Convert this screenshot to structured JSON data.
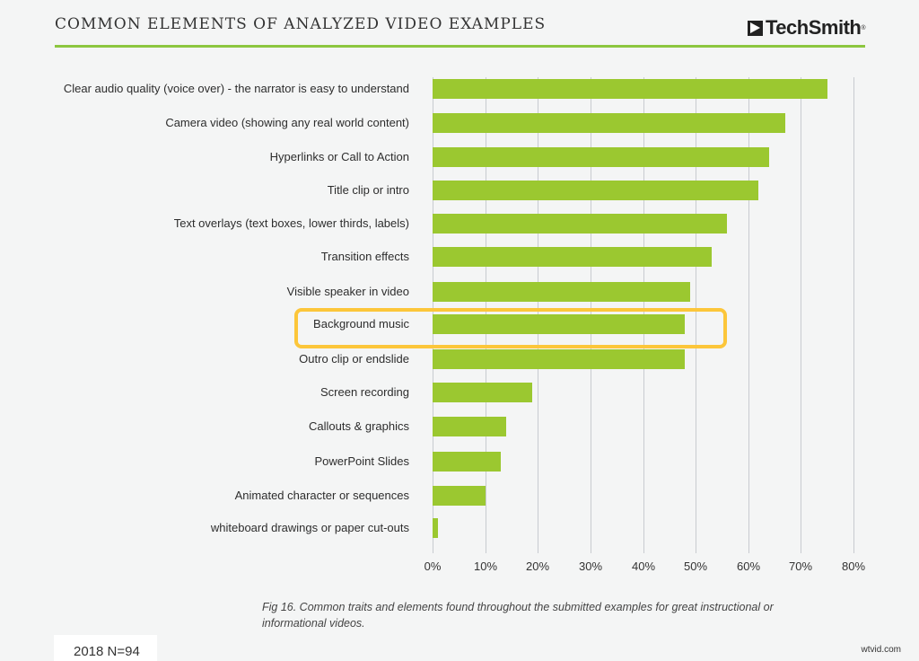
{
  "header": {
    "title": "COMMON ELEMENTS OF ANALYZED VIDEO EXAMPLES",
    "logo_text": "TechSmith",
    "logo_mark": "®"
  },
  "colors": {
    "bar": "#9bc830",
    "highlight": "#fcc63a",
    "rule": "#8cc63f"
  },
  "chart_data": {
    "type": "bar",
    "orientation": "horizontal",
    "title": "COMMON ELEMENTS OF ANALYZED VIDEO EXAMPLES",
    "xlabel": "",
    "ylabel": "",
    "xlim": [
      0,
      80
    ],
    "grid": true,
    "categories": [
      "Clear audio quality (voice over) - the narrator is easy to understand",
      "Camera video (showing any real world content)",
      "Hyperlinks or Call to Action",
      "Title clip or intro",
      "Text overlays (text boxes, lower thirds, labels)",
      "Transition effects",
      "Visible speaker in video",
      "Background music",
      "Outro clip or endslide",
      "Screen recording",
      "Callouts & graphics",
      "PowerPoint Slides",
      "Animated character or sequences",
      "whiteboard drawings or paper cut-outs"
    ],
    "values": [
      75,
      67,
      64,
      62,
      56,
      53,
      49,
      48,
      48,
      19,
      14,
      13,
      10,
      1
    ],
    "tick_labels": [
      "0%",
      "10%",
      "20%",
      "30%",
      "40%",
      "50%",
      "60%",
      "70%",
      "80%"
    ],
    "highlighted_category": "Background music",
    "annotations": [
      "2018 N=94"
    ]
  },
  "caption": "Fig 16. Common traits and elements found throughout the submitted examples for great instructional or informational videos.",
  "sample_label": "2018 N=94",
  "watermark": "wtvid.com"
}
